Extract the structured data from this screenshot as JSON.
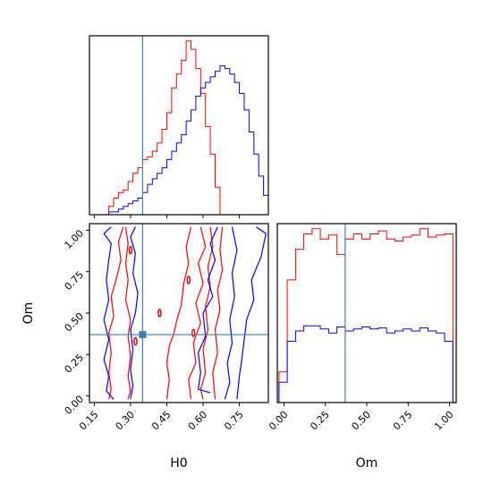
{
  "figure": {
    "type": "corner-plot",
    "colors": {
      "red": "#ff0000",
      "blue": "#0000ff",
      "truth": "#3f7fb0",
      "axis": "#000000"
    }
  },
  "chart_data": [
    {
      "type": "bar",
      "panel": "H0-marginal",
      "x_range": [
        0.13,
        0.87
      ],
      "bin_edges": [
        0.19,
        0.21,
        0.23,
        0.25,
        0.27,
        0.29,
        0.31,
        0.33,
        0.35,
        0.37,
        0.39,
        0.41,
        0.43,
        0.45,
        0.47,
        0.49,
        0.51,
        0.53,
        0.55,
        0.57,
        0.59,
        0.61,
        0.63,
        0.65,
        0.67,
        0.69,
        0.71,
        0.73,
        0.75,
        0.77,
        0.79,
        0.81,
        0.83,
        0.85,
        0.87
      ],
      "series": [
        {
          "color": "#ff0000",
          "values": [
            0,
            3,
            6,
            8,
            9,
            12,
            15,
            17,
            20,
            21,
            23,
            26,
            31,
            37,
            46,
            51,
            56,
            63,
            60,
            53,
            44,
            32,
            22,
            10,
            0,
            0,
            0,
            0,
            0,
            0,
            0,
            0,
            0,
            0
          ]
        },
        {
          "color": "#0000ff",
          "values": [
            0,
            1,
            1,
            2,
            3,
            4,
            5,
            6,
            8,
            11,
            13,
            15,
            17,
            20,
            23,
            26,
            29,
            34,
            38,
            43,
            46,
            48,
            50,
            52,
            54,
            53,
            51,
            48,
            44,
            38,
            30,
            22,
            14,
            7
          ]
        }
      ],
      "truth_x": 0.35
    },
    {
      "type": "bar",
      "panel": "Om-marginal",
      "xlabel": "Om",
      "x_range": [
        -0.04,
        1.04
      ],
      "x_ticks": [
        "0.00",
        "0.25",
        "0.50",
        "0.75",
        "1.00"
      ],
      "bin_edges": [
        -0.03,
        0.02,
        0.07,
        0.12,
        0.17,
        0.22,
        0.27,
        0.32,
        0.37,
        0.42,
        0.47,
        0.52,
        0.57,
        0.62,
        0.67,
        0.72,
        0.77,
        0.82,
        0.87,
        0.92,
        0.97,
        1.02
      ],
      "series": [
        {
          "color": "#ff0000",
          "values": [
            30,
            120,
            150,
            165,
            170,
            160,
            164,
            145,
            160,
            165,
            160,
            165,
            168,
            160,
            158,
            162,
            164,
            170,
            162,
            164,
            165
          ]
        },
        {
          "color": "#0000ff",
          "values": [
            20,
            60,
            70,
            75,
            75,
            72,
            68,
            74,
            70,
            72,
            74,
            72,
            73,
            68,
            70,
            72,
            70,
            73,
            70,
            68,
            60
          ]
        }
      ],
      "truth_x": 0.37
    },
    {
      "type": "contour",
      "panel": "H0-Om-joint",
      "xlabel": "H0",
      "ylabel": "Om",
      "x_range": [
        0.13,
        0.87
      ],
      "y_range": [
        -0.04,
        1.04
      ],
      "x_ticks": [
        "0.15",
        "0.30",
        "0.45",
        "0.60",
        "0.75"
      ],
      "y_ticks": [
        "0.00",
        "0.25",
        "0.50",
        "0.75",
        "1.00"
      ],
      "truth": [
        0.35,
        0.37
      ],
      "series": [
        {
          "color": "#ff0000",
          "lines": [
            [
              [
                0.27,
                1.02
              ],
              [
                0.25,
                0.93
              ],
              [
                0.26,
                0.82
              ],
              [
                0.24,
                0.7
              ],
              [
                0.22,
                0.6
              ],
              [
                0.23,
                0.48
              ],
              [
                0.21,
                0.38
              ],
              [
                0.22,
                0.26
              ],
              [
                0.21,
                0.14
              ],
              [
                0.22,
                0.04
              ],
              [
                0.21,
                -0.02
              ]
            ],
            [
              [
                0.28,
                1.02
              ],
              [
                0.29,
                0.92
              ],
              [
                0.28,
                0.8
              ],
              [
                0.29,
                0.7
              ],
              [
                0.28,
                0.58
              ],
              [
                0.3,
                0.46
              ],
              [
                0.29,
                0.36
              ],
              [
                0.3,
                0.24
              ],
              [
                0.29,
                0.12
              ],
              [
                0.3,
                0.03
              ],
              [
                0.29,
                -0.02
              ]
            ],
            [
              [
                0.55,
                1.02
              ],
              [
                0.53,
                0.9
              ],
              [
                0.54,
                0.8
              ],
              [
                0.52,
                0.68
              ],
              [
                0.51,
                0.55
              ],
              [
                0.49,
                0.45
              ],
              [
                0.48,
                0.38
              ],
              [
                0.46,
                0.3
              ],
              [
                0.45,
                0.2
              ],
              [
                0.46,
                0.1
              ],
              [
                0.45,
                -0.02
              ]
            ],
            [
              [
                0.59,
                1.02
              ],
              [
                0.61,
                0.9
              ],
              [
                0.58,
                0.8
              ],
              [
                0.6,
                0.68
              ],
              [
                0.57,
                0.56
              ],
              [
                0.59,
                0.44
              ],
              [
                0.56,
                0.32
              ],
              [
                0.57,
                0.2
              ],
              [
                0.54,
                0.1
              ],
              [
                0.55,
                -0.02
              ]
            ],
            [
              [
                0.63,
                1.02
              ],
              [
                0.64,
                0.9
              ],
              [
                0.62,
                0.78
              ],
              [
                0.63,
                0.66
              ],
              [
                0.61,
                0.54
              ],
              [
                0.62,
                0.4
              ],
              [
                0.6,
                0.28
              ],
              [
                0.61,
                0.14
              ],
              [
                0.59,
                0.04
              ],
              [
                0.6,
                -0.02
              ]
            ],
            [
              [
                0.68,
                1.02
              ],
              [
                0.67,
                0.88
              ],
              [
                0.68,
                0.76
              ],
              [
                0.66,
                0.64
              ],
              [
                0.67,
                0.52
              ],
              [
                0.65,
                0.4
              ],
              [
                0.66,
                0.26
              ],
              [
                0.64,
                0.14
              ],
              [
                0.65,
                -0.02
              ]
            ]
          ],
          "islands": [
            [
              0.3,
              0.88
            ],
            [
              0.42,
              0.5
            ],
            [
              0.54,
              0.7
            ],
            [
              0.56,
              0.38
            ],
            [
              0.32,
              0.33
            ]
          ]
        },
        {
          "color": "#0000ff",
          "lines": [
            [
              [
                0.22,
                1.02
              ],
              [
                0.19,
                0.98
              ],
              [
                0.22,
                0.92
              ],
              [
                0.21,
                0.82
              ],
              [
                0.2,
                0.7
              ],
              [
                0.21,
                0.58
              ],
              [
                0.19,
                0.46
              ],
              [
                0.21,
                0.34
              ],
              [
                0.19,
                0.22
              ],
              [
                0.21,
                0.12
              ],
              [
                0.2,
                0.03
              ],
              [
                0.23,
                -0.02
              ]
            ],
            [
              [
                0.32,
                1.02
              ],
              [
                0.3,
                0.96
              ],
              [
                0.32,
                0.86
              ],
              [
                0.31,
                0.74
              ],
              [
                0.33,
                0.62
              ],
              [
                0.32,
                0.5
              ],
              [
                0.3,
                0.4
              ],
              [
                0.31,
                0.28
              ],
              [
                0.3,
                0.16
              ],
              [
                0.31,
                0.06
              ],
              [
                0.3,
                -0.02
              ]
            ],
            [
              [
                0.66,
                1.02
              ],
              [
                0.63,
                0.92
              ],
              [
                0.65,
                0.82
              ],
              [
                0.62,
                0.7
              ],
              [
                0.64,
                0.6
              ],
              [
                0.6,
                0.5
              ],
              [
                0.61,
                0.36
              ],
              [
                0.58,
                0.26
              ],
              [
                0.59,
                0.14
              ],
              [
                0.58,
                0.04
              ],
              [
                0.63,
                0.02
              ]
            ],
            [
              [
                0.72,
                1.02
              ],
              [
                0.74,
                0.88
              ],
              [
                0.72,
                0.74
              ],
              [
                0.73,
                0.6
              ],
              [
                0.71,
                0.46
              ],
              [
                0.72,
                0.32
              ],
              [
                0.7,
                0.2
              ],
              [
                0.71,
                0.08
              ],
              [
                0.69,
                -0.02
              ]
            ],
            [
              [
                0.82,
                1.02
              ],
              [
                0.86,
                0.98
              ],
              [
                0.84,
                0.84
              ],
              [
                0.8,
                0.7
              ],
              [
                0.81,
                0.58
              ],
              [
                0.78,
                0.46
              ],
              [
                0.77,
                0.34
              ],
              [
                0.76,
                0.22
              ],
              [
                0.75,
                0.12
              ],
              [
                0.74,
                -0.02
              ]
            ]
          ],
          "islands": []
        }
      ]
    }
  ]
}
